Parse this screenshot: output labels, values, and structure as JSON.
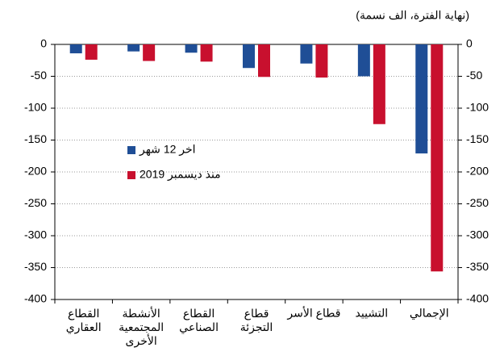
{
  "chart_data": {
    "type": "bar",
    "unit_label": "(نهاية الفترة، الف نسمة)",
    "categories": [
      "القطاع\nالعقاري",
      "الأنشطة\nالمجتمعية\nالأخرى",
      "القطاع\nالصناعي",
      "قطاع\nالتجزئة",
      "قطاع الأسر",
      "التشييد",
      "الإجمالي"
    ],
    "series": [
      {
        "name": "اخر 12 شهر",
        "color": "#1f4e96",
        "values": [
          -14,
          -11,
          -13,
          -37,
          -30,
          -50,
          -171
        ]
      },
      {
        "name": "منذ ديسمبر 2019",
        "color": "#c8102e",
        "values": [
          -24,
          -26,
          -27,
          -51,
          -52,
          -125,
          -356
        ]
      }
    ],
    "ylim": [
      -400,
      0
    ],
    "yticks": [
      0,
      -50,
      -100,
      -150,
      -200,
      -250,
      -300,
      -350,
      -400
    ],
    "y2lim": [
      -400,
      0
    ],
    "y2ticks": [
      0,
      -50,
      -100,
      -150,
      -200,
      -250,
      -300,
      -350,
      -400
    ],
    "grid": true,
    "legend": "center-left"
  }
}
